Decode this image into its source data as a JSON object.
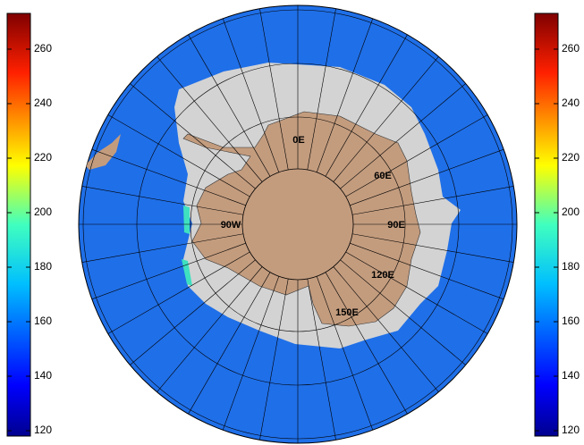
{
  "left_colorbar": {
    "ticks": [
      120,
      140,
      160,
      180,
      200,
      220,
      240,
      260
    ]
  },
  "right_colorbar": {
    "ticks": [
      120,
      140,
      160,
      180,
      200,
      220,
      240,
      260
    ]
  },
  "map": {
    "longitude_labels": [
      "0E",
      "60E",
      "90E",
      "120E",
      "150E",
      "90W"
    ]
  }
}
